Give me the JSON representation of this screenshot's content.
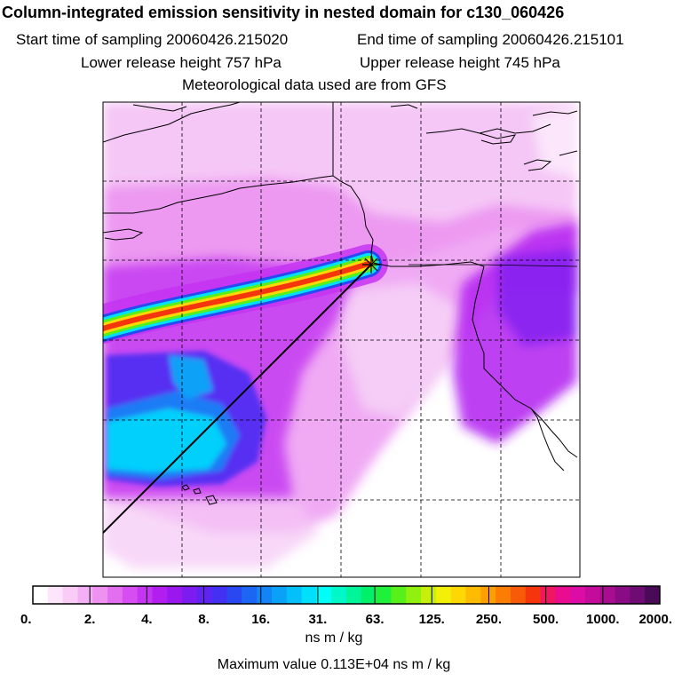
{
  "title": "Column-integrated emission sensitivity in nested domain for c130_060426",
  "sampling": {
    "start": "Start time of sampling 20060426.215020",
    "end": "End time of sampling 20060426.215101"
  },
  "release": {
    "lower": "Lower release height  757 hPa",
    "upper": "Upper release height  745 hPa"
  },
  "met_note": "Meteorological data used are from GFS",
  "colorbar": {
    "tick_labels": [
      "0.",
      "2.",
      "4.",
      "8.",
      "16.",
      "31.",
      "63.",
      "125.",
      "250.",
      "500.",
      "1000.",
      "2000."
    ],
    "colors": [
      "#ffffff",
      "#fde6fb",
      "#f9ccf7",
      "#f4b0f4",
      "#ee91f1",
      "#e26ef0",
      "#d64ef2",
      "#c534f2",
      "#b21ef0",
      "#9a18ee",
      "#7c1cf0",
      "#5f24f2",
      "#4231f2",
      "#2a48f2",
      "#1d66f4",
      "#1383f6",
      "#0aa1f8",
      "#03c0fa",
      "#00e0fc",
      "#00fdf6",
      "#00f8c8",
      "#00f49a",
      "#00f06a",
      "#1ff03a",
      "#58f01a",
      "#90f010",
      "#c6f00c",
      "#f2f008",
      "#fdd804",
      "#fdbb02",
      "#fd9e02",
      "#fb7d04",
      "#f85a08",
      "#f5360c",
      "#f01660",
      "#ea0c90",
      "#dc0ca4",
      "#c40c9a",
      "#a80c90",
      "#8a0c84",
      "#6e0c74",
      "#4a0a58"
    ]
  },
  "units": "ns m / kg",
  "max_value": "Maximum value  0.113E+04 ns m / kg"
}
